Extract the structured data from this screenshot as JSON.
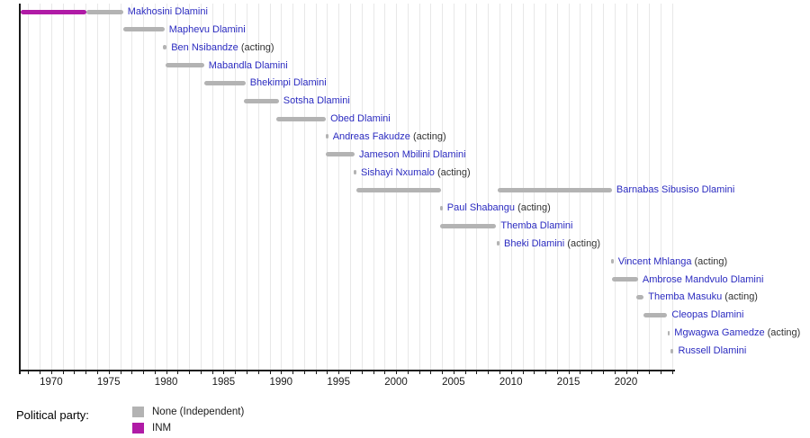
{
  "colors": {
    "party_colors": {
      "None (Independent)": "#b3b3b3",
      "INM": "#b01ba6"
    },
    "name_text": "#2b2bc0",
    "acting_text": "#333333",
    "axis": "#1a1a1a",
    "gridline": "#e8e8e8"
  },
  "legend": {
    "label": "Political party:",
    "items": [
      {
        "label": "None (Independent)"
      },
      {
        "label": "INM"
      }
    ]
  },
  "acting_suffix": "(acting)",
  "chart_data": {
    "type": "timeline",
    "title": "",
    "xlabel": "",
    "ylabel": "",
    "x_axis": {
      "min": 1967.27,
      "max": 2024.27,
      "minor_tick_interval": 1,
      "labeled_ticks": [
        1970,
        1975,
        1980,
        1985,
        1990,
        1995,
        2000,
        2005,
        2010,
        2015,
        2020
      ],
      "grid": true
    },
    "rows": [
      {
        "name": "Makhosini Dlamini",
        "acting": false,
        "segments": [
          {
            "start": 1967.35,
            "end": 1973.05,
            "party": "INM"
          },
          {
            "start": 1973.05,
            "end": 1976.25,
            "party": "None (Independent)"
          }
        ]
      },
      {
        "name": "Maphevu Dlamini",
        "acting": false,
        "segments": [
          {
            "start": 1976.25,
            "end": 1979.85,
            "party": "None (Independent)"
          }
        ]
      },
      {
        "name": "Ben Nsibandze",
        "acting": true,
        "segments": [
          {
            "start": 1979.7,
            "end": 1980.05,
            "party": "None (Independent)"
          }
        ]
      },
      {
        "name": "Mabandla Dlamini",
        "acting": false,
        "segments": [
          {
            "start": 1979.95,
            "end": 1983.3,
            "party": "None (Independent)"
          }
        ]
      },
      {
        "name": "Bhekimpi Dlamini",
        "acting": false,
        "segments": [
          {
            "start": 1983.3,
            "end": 1986.9,
            "party": "None (Independent)"
          }
        ]
      },
      {
        "name": "Sotsha Dlamini",
        "acting": false,
        "segments": [
          {
            "start": 1986.75,
            "end": 1989.8,
            "party": "None (Independent)"
          }
        ]
      },
      {
        "name": "Obed Dlamini",
        "acting": false,
        "segments": [
          {
            "start": 1989.55,
            "end": 1993.9,
            "party": "None (Independent)"
          }
        ]
      },
      {
        "name": "Andreas Fakudze",
        "acting": true,
        "segments": [
          {
            "start": 1993.9,
            "end": 1994.1,
            "party": "None (Independent)"
          }
        ]
      },
      {
        "name": "Jameson Mbilini Dlamini",
        "acting": false,
        "segments": [
          {
            "start": 1993.88,
            "end": 1996.4,
            "party": "None (Independent)"
          }
        ]
      },
      {
        "name": "Sishayi Nxumalo",
        "acting": true,
        "segments": [
          {
            "start": 1996.3,
            "end": 1996.55,
            "party": "None (Independent)"
          }
        ]
      },
      {
        "name": "Barnabas Sibusiso Dlamini",
        "acting": false,
        "segments": [
          {
            "start": 1996.55,
            "end": 2003.9,
            "party": "None (Independent)"
          },
          {
            "start": 2008.85,
            "end": 2018.78,
            "party": "None (Independent)"
          }
        ]
      },
      {
        "name": "Paul Shabangu",
        "acting": true,
        "segments": [
          {
            "start": 2003.82,
            "end": 2004.05,
            "party": "None (Independent)"
          }
        ]
      },
      {
        "name": "Themba Dlamini",
        "acting": false,
        "segments": [
          {
            "start": 2003.85,
            "end": 2008.72,
            "party": "None (Independent)"
          }
        ]
      },
      {
        "name": "Bheki Dlamini",
        "acting": true,
        "segments": [
          {
            "start": 2008.75,
            "end": 2009.0,
            "party": "None (Independent)"
          }
        ]
      },
      {
        "name": "Vincent Mhlanga",
        "acting": true,
        "segments": [
          {
            "start": 2018.72,
            "end": 2018.92,
            "party": "None (Independent)"
          }
        ]
      },
      {
        "name": "Ambrose Mandvulo Dlamini",
        "acting": false,
        "segments": [
          {
            "start": 2018.8,
            "end": 2021.05,
            "party": "None (Independent)"
          }
        ]
      },
      {
        "name": "Themba Masuku",
        "acting": true,
        "segments": [
          {
            "start": 2020.9,
            "end": 2021.55,
            "party": "None (Independent)"
          }
        ]
      },
      {
        "name": "Cleopas Dlamini",
        "acting": false,
        "segments": [
          {
            "start": 2021.55,
            "end": 2023.6,
            "party": "None (Independent)"
          }
        ]
      },
      {
        "name": "Mgwagwa Gamedze",
        "acting": true,
        "segments": [
          {
            "start": 2023.63,
            "end": 2023.82,
            "party": "None (Independent)"
          }
        ]
      },
      {
        "name": "Russell Dlamini",
        "acting": false,
        "segments": [
          {
            "start": 2023.9,
            "end": 2024.15,
            "party": "None (Independent)"
          }
        ]
      }
    ]
  }
}
